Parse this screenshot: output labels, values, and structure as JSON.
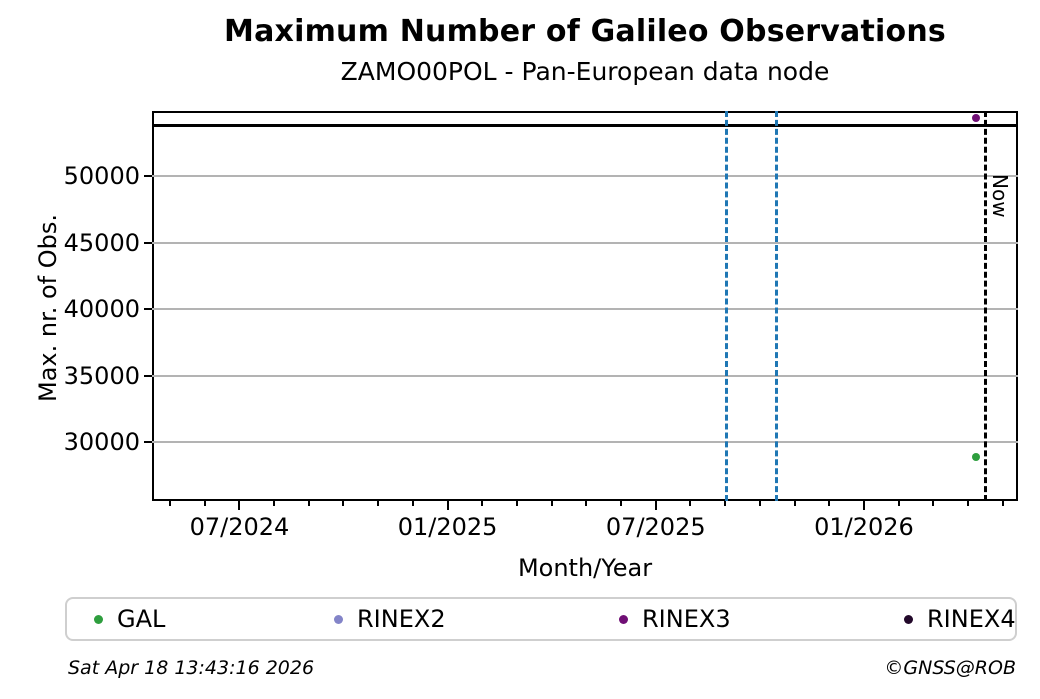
{
  "header": {
    "title": "Maximum Number of Galileo Observations",
    "subtitle": "ZAMO00POL - Pan-European data node"
  },
  "footer": {
    "timestamp": "Sat Apr 18 13:43:16 2026",
    "credit": "©GNSS@ROB"
  },
  "chart_data": {
    "type": "scatter",
    "title": "Maximum Number of Galileo Observations",
    "subtitle": "ZAMO00POL - Pan-European data node",
    "xlabel": "Month/Year",
    "ylabel": "Max. nr. of Obs.",
    "xlim_years": [
      2024.29,
      2026.37
    ],
    "ylim": [
      25600,
      54900
    ],
    "yticks": [
      30000,
      35000,
      40000,
      45000,
      50000
    ],
    "xticks": [
      {
        "v": 2024.5,
        "label": "07/2024"
      },
      {
        "v": 2025.0,
        "label": "01/2025"
      },
      {
        "v": 2025.5,
        "label": "07/2025"
      },
      {
        "v": 2026.0,
        "label": "01/2026"
      }
    ],
    "minor_tick_step_years": 0.08333,
    "minor_tick_start_year": 2024.3333,
    "grid": "horizontal-only",
    "grid_color": "#b3b3b3",
    "series": [
      {
        "name": "GAL",
        "color": "#2e9e3e",
        "points": [
          {
            "x": 2026.27,
            "y": 28900
          }
        ]
      },
      {
        "name": "RINEX2",
        "color": "#8384c8",
        "points": []
      },
      {
        "name": "RINEX3",
        "color": "#700f75",
        "points": [
          {
            "x": 2026.27,
            "y": 54350
          }
        ]
      },
      {
        "name": "RINEX4",
        "color": "#22082a",
        "points": []
      }
    ],
    "hlines": [
      {
        "y": 53800,
        "color": "#000000",
        "style": "solid"
      }
    ],
    "vlines": [
      {
        "x": 2025.67,
        "color": "#1f77b4",
        "style": "dashed",
        "label": ""
      },
      {
        "x": 2025.79,
        "color": "#1f77b4",
        "style": "dashed",
        "label": ""
      },
      {
        "x": 2026.292,
        "color": "#000000",
        "style": "dashed",
        "label": "Now"
      }
    ],
    "legend": {
      "position": "bottom",
      "items": [
        "GAL",
        "RINEX2",
        "RINEX3",
        "RINEX4"
      ]
    }
  }
}
